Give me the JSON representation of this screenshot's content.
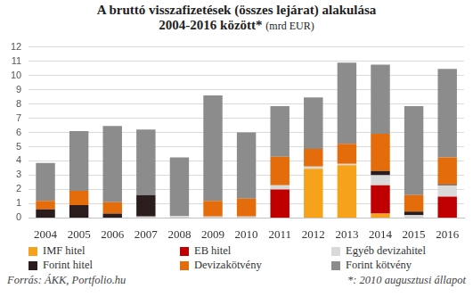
{
  "chart_data": {
    "type": "bar",
    "title": [
      "A bruttó visszafizetések (összes lejárat) alakulása",
      "2004-2016 között*"
    ],
    "subtitle": "(mrd EUR)",
    "categories": [
      "2004",
      "2005",
      "2006",
      "2007",
      "2008",
      "2009",
      "2010",
      "2011",
      "2012",
      "2013",
      "2014",
      "2015",
      "2016"
    ],
    "series": [
      {
        "name": "IMF hitel",
        "color": "#f7a21b",
        "values": [
          0,
          0,
          0,
          0,
          0,
          0,
          0,
          0,
          3.45,
          3.7,
          0.3,
          0,
          0
        ]
      },
      {
        "name": "EB hitel",
        "color": "#c00000",
        "values": [
          0,
          0,
          0,
          0,
          0,
          0,
          0,
          2.0,
          0,
          0,
          2.0,
          0,
          1.5
        ]
      },
      {
        "name": "Egyéb devizahitel",
        "color": "#d9d9d9",
        "values": [
          0,
          0,
          0,
          0.1,
          0.15,
          0.1,
          0.1,
          0.3,
          0.15,
          0.1,
          0.7,
          0.2,
          0.8
        ]
      },
      {
        "name": "Forint hitel",
        "color": "#2b1d1d",
        "values": [
          0.6,
          0.9,
          0.3,
          1.5,
          0,
          0,
          0,
          0,
          0,
          0,
          0.3,
          0.25,
          0.05
        ]
      },
      {
        "name": "Devizakötvény",
        "color": "#e46c0a",
        "values": [
          0.6,
          1.0,
          0.8,
          0,
          0,
          1.1,
          1.25,
          2.0,
          1.25,
          1.4,
          2.6,
          1.15,
          1.9
        ]
      },
      {
        "name": "Forint kötvény",
        "color": "#8c8c8c",
        "values": [
          2.65,
          4.2,
          5.35,
          4.6,
          4.1,
          7.4,
          4.65,
          3.55,
          3.6,
          5.7,
          4.85,
          6.25,
          6.2
        ]
      }
    ],
    "stacked": true,
    "ylim": [
      0,
      12
    ],
    "yticks": [
      0,
      1,
      2,
      3,
      4,
      5,
      6,
      7,
      8,
      9,
      10,
      11,
      12
    ],
    "grid": true,
    "legend": "bottom",
    "annotations": [
      "Forrás: ÁKK, Portfolio.hu",
      "*: 2010 augusztusi állapot"
    ]
  }
}
